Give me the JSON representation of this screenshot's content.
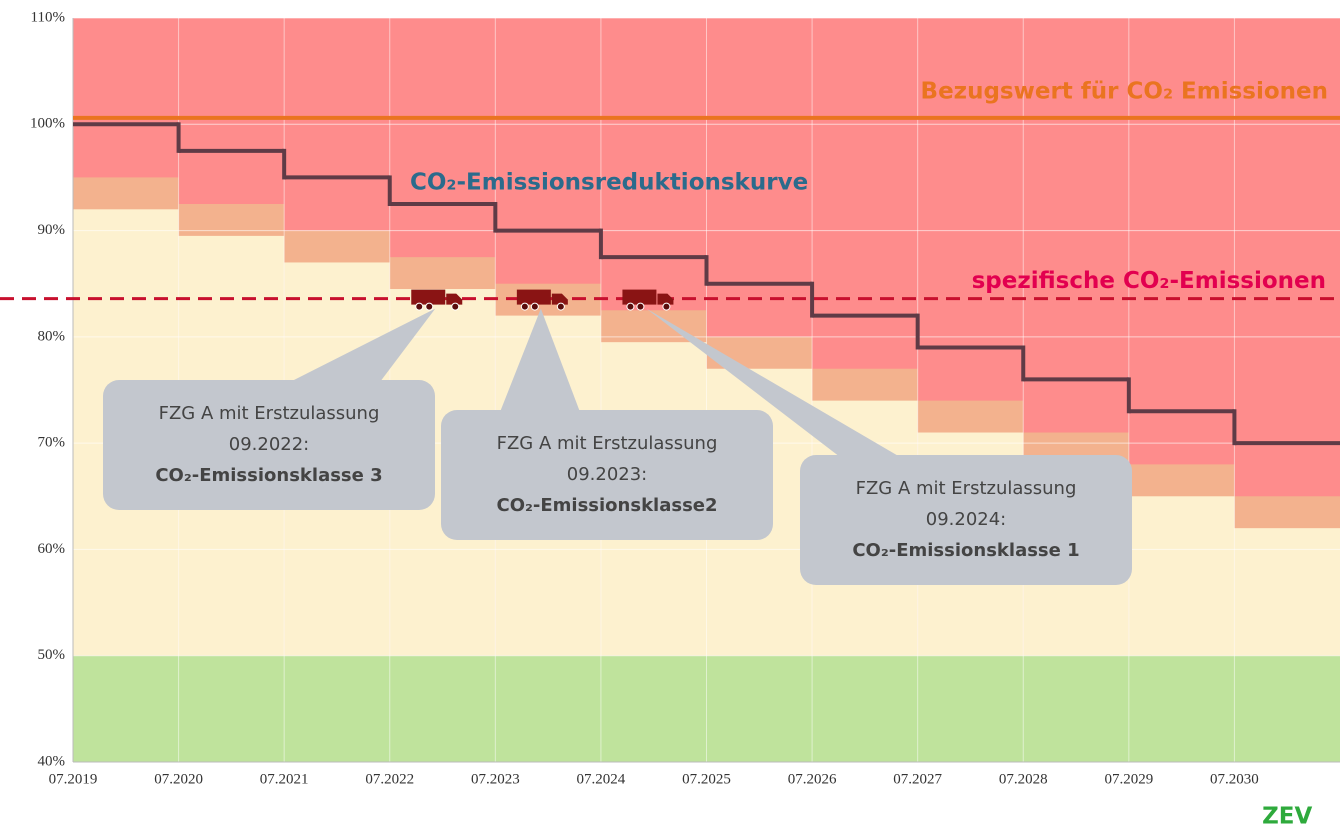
{
  "chart_data": {
    "type": "step",
    "ylim": [
      40,
      110
    ],
    "yticks": [
      {
        "value": 40,
        "label": "40%"
      },
      {
        "value": 50,
        "label": "50%"
      },
      {
        "value": 60,
        "label": "60%"
      },
      {
        "value": 70,
        "label": "70%"
      },
      {
        "value": 80,
        "label": "80%"
      },
      {
        "value": 90,
        "label": "90%"
      },
      {
        "value": 100,
        "label": "100%"
      },
      {
        "value": 110,
        "label": "110%"
      }
    ],
    "xticks": [
      "07.2019",
      "07.2020",
      "07.2021",
      "07.2022",
      "07.2023",
      "07.2024",
      "07.2025",
      "07.2026",
      "07.2027",
      "07.2028",
      "07.2029",
      "07.2030"
    ],
    "grid": true,
    "curve": {
      "label": "CO₂-Emissionsreduktionskurve",
      "color": "#5f3b46",
      "values": [
        100,
        97.5,
        95,
        92.5,
        90,
        87.5,
        85,
        82,
        79,
        76,
        73,
        70
      ]
    },
    "orange_band": {
      "color": "#f3b28e",
      "values": [
        95,
        92.5,
        90,
        87.5,
        85,
        82.5,
        80,
        77,
        74,
        71,
        68,
        65
      ]
    },
    "beige_band": {
      "color": "#fdf1cf",
      "values": [
        92,
        89.5,
        87,
        84.5,
        82,
        79.5,
        77,
        74,
        71,
        68,
        65,
        62
      ]
    },
    "red_zone": {
      "color": "#fe8c8c"
    },
    "zev_zone": {
      "label": "ZEV",
      "color": "#bfe39c",
      "values": [
        40,
        50
      ]
    },
    "reference": {
      "label": "Bezugswert für CO₂ Emissionen",
      "color": "#ea7420",
      "value": 100.6
    },
    "specific": {
      "label": "spezifische CO₂-Emissionen",
      "color": "#c8102e",
      "value": 83.6
    },
    "callouts": [
      {
        "lines": [
          "FZG A mit Erstzulassung",
          "09.2022:"
        ],
        "bold": "CO₂-Emissionsklasse 3"
      },
      {
        "lines": [
          "FZG A mit Erstzulassung",
          "09.2023:"
        ],
        "bold": "CO₂-Emissionsklasse2"
      },
      {
        "lines": [
          "FZG A mit Erstzulassung",
          "09.2024:"
        ],
        "bold": "CO₂-Emissionsklasse 1"
      }
    ]
  }
}
